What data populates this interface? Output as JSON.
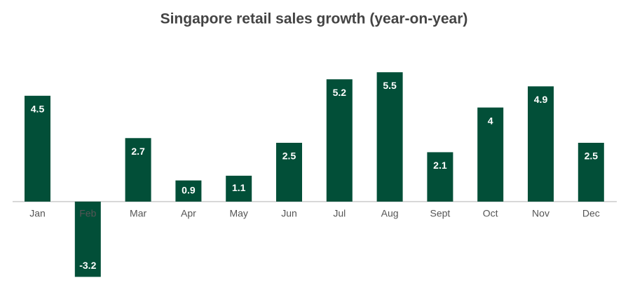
{
  "chart_data": {
    "type": "bar",
    "title": "Singapore retail sales growth (year-on-year)",
    "categories": [
      "Jan",
      "Feb",
      "Mar",
      "Apr",
      "May",
      "Jun",
      "Jul",
      "Aug",
      "Sept",
      "Oct",
      "Nov",
      "Dec"
    ],
    "values": [
      4.5,
      -3.2,
      2.7,
      0.9,
      1.1,
      2.5,
      5.2,
      5.5,
      2.1,
      4,
      4.9,
      2.5
    ],
    "color": "#024f38"
  }
}
